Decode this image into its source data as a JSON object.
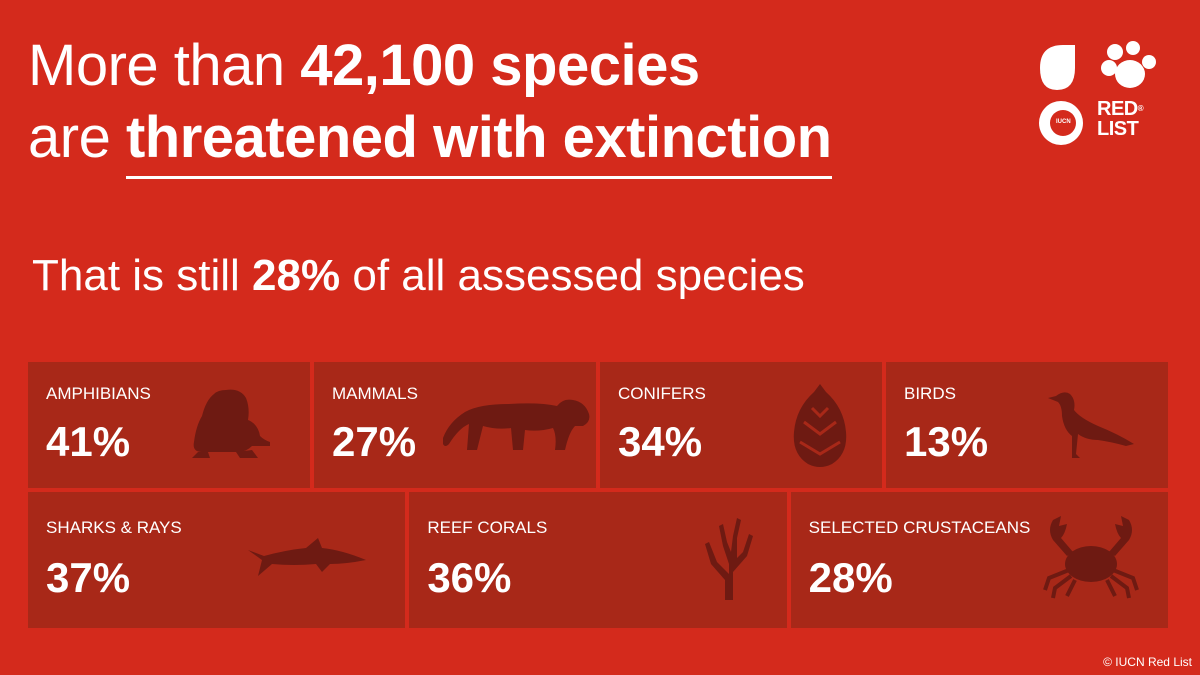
{
  "headline": {
    "line1_pre": "More than ",
    "line1_bold": "42,100 species",
    "line2_pre": "are ",
    "line2_underlined": "threatened with extinction"
  },
  "subhead": {
    "pre": "That is still ",
    "bold": "28%",
    "post": " of all assessed species"
  },
  "logo": {
    "line1": "RED",
    "line2": "LIST",
    "mark": "®",
    "badge": "IUCN"
  },
  "groups_row1": [
    {
      "label": "AMPHIBIANS",
      "pct": "41%",
      "icon": "frog-icon"
    },
    {
      "label": "MAMMALS",
      "pct": "27%",
      "icon": "tiger-icon"
    },
    {
      "label": "CONIFERS",
      "pct": "34%",
      "icon": "pinecone-icon"
    },
    {
      "label": "BIRDS",
      "pct": "13%",
      "icon": "bird-icon"
    }
  ],
  "groups_row2": [
    {
      "label": "SHARKS & RAYS",
      "pct": "37%",
      "icon": "shark-icon"
    },
    {
      "label": "REEF CORALS",
      "pct": "36%",
      "icon": "coral-icon"
    },
    {
      "label": "SELECTED CRUSTACEANS",
      "pct": "28%",
      "icon": "crab-icon"
    }
  ],
  "copyright": "© IUCN Red List",
  "colors": {
    "background": "#d42a1c",
    "tile": "#a82818",
    "silhouette": "#6e1a12"
  }
}
